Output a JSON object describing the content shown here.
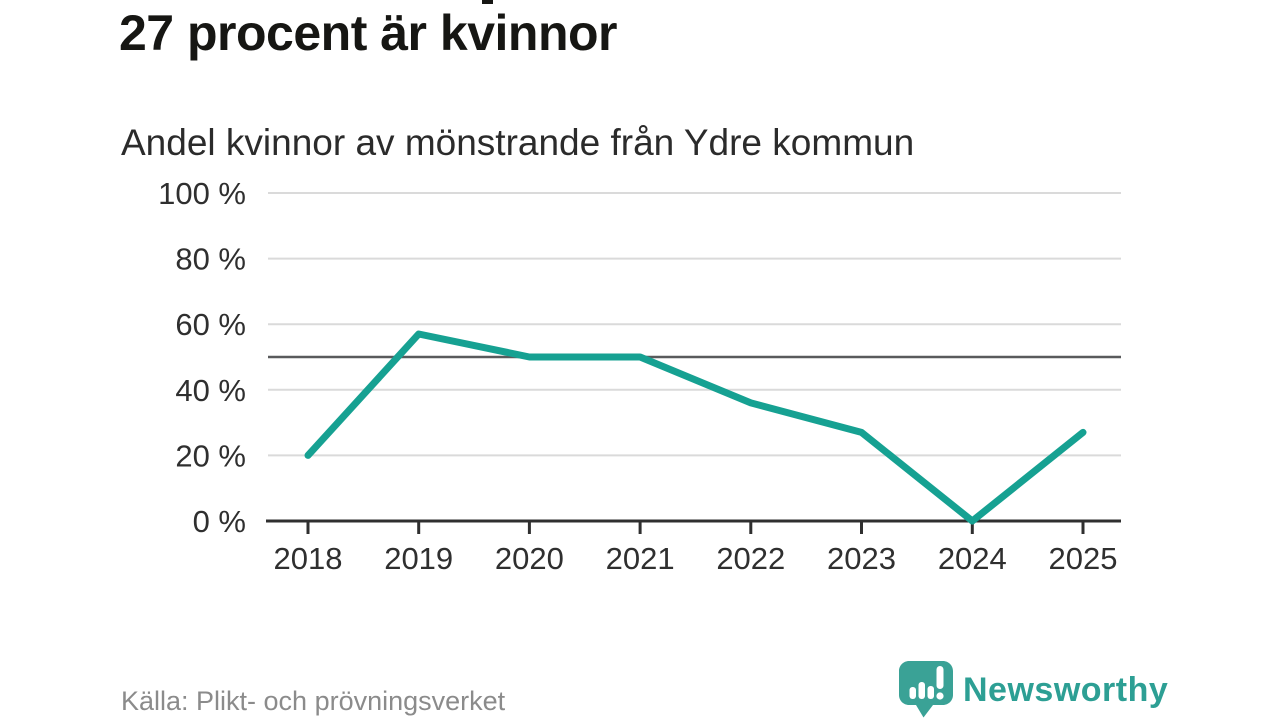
{
  "header": {
    "title": "27 procent är kvinnor",
    "subtitle": "Andel kvinnor av mönstrande från Ydre kommun"
  },
  "chart_data": {
    "type": "line",
    "title": "27 procent är kvinnor",
    "subtitle": "Andel kvinnor av mönstrande från Ydre kommun",
    "x": [
      "2018",
      "2019",
      "2020",
      "2021",
      "2022",
      "2023",
      "2024",
      "2025"
    ],
    "series": [
      {
        "name": "Andel kvinnor av mönstrande",
        "values": [
          20,
          57,
          50,
          50,
          36,
          27,
          0,
          27
        ]
      }
    ],
    "unit": "%",
    "ylim": [
      0,
      100
    ],
    "yticks": [
      0,
      20,
      40,
      60,
      80,
      100
    ],
    "ytick_labels": [
      "0 %",
      "20 %",
      "40 %",
      "60 %",
      "80 %",
      "100 %"
    ],
    "reference_line": 50,
    "grid": true,
    "legend": "none",
    "line_color": "#16a192"
  },
  "footer": {
    "source": "Källa: Plikt- och prövningsverket",
    "brand": "Newsworthy"
  },
  "icons": {
    "brand_logo": "newsworthy-speech-bubble-bar-chart-exclamation"
  },
  "colors": {
    "accent": "#16a192",
    "brand-icon": "#3aa296",
    "brand-text": "#2d9f94",
    "grid": "#dadada",
    "reference": "#595a5c",
    "axis": "#2f2f2f",
    "axis-label": "#2f2f2f",
    "title": "#161613",
    "subtitle": "#2b2b2b",
    "muted": "#8b8b8b"
  }
}
